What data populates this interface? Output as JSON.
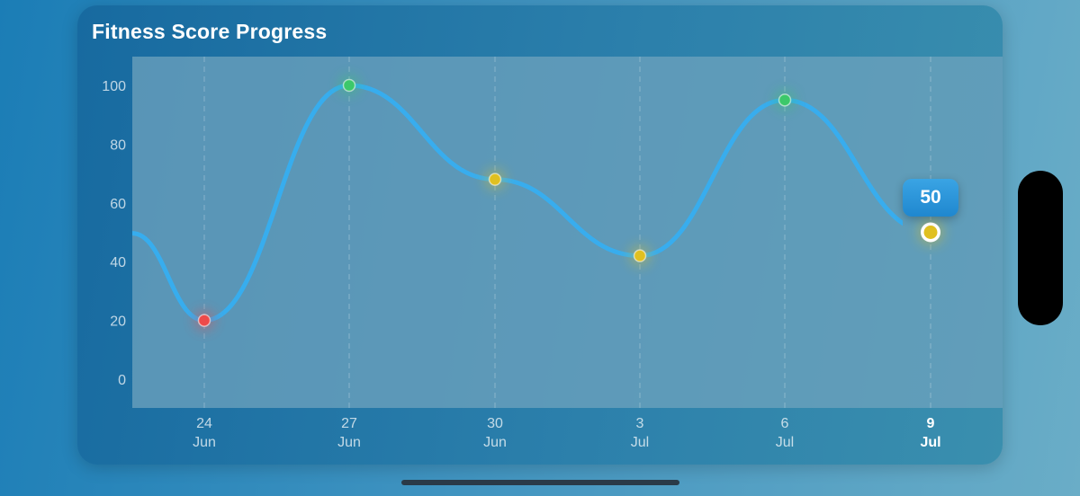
{
  "card": {
    "title": "Fitness Score Progress"
  },
  "tooltip": {
    "value": "50"
  },
  "colors": {
    "line": "#36aef0",
    "good": "#3cc86a",
    "medium": "#e0c020",
    "poor": "#ee4a4a",
    "plot_bg": "#6fa3bd"
  },
  "chart_data": {
    "type": "line",
    "title": "Fitness Score Progress",
    "xlabel": "",
    "ylabel": "",
    "ylim": [
      0,
      100
    ],
    "yticks": [
      "0",
      "20",
      "40",
      "60",
      "80",
      "100"
    ],
    "x": [
      {
        "day": "24",
        "month": "Jun"
      },
      {
        "day": "27",
        "month": "Jun"
      },
      {
        "day": "30",
        "month": "Jun"
      },
      {
        "day": "3",
        "month": "Jul"
      },
      {
        "day": "6",
        "month": "Jul"
      },
      {
        "day": "9",
        "month": "Jul"
      }
    ],
    "selected_index": 5,
    "series": [
      {
        "values": [
          20,
          100,
          68,
          42,
          95,
          50
        ],
        "point_status": [
          "poor",
          "good",
          "medium",
          "medium",
          "good",
          "medium"
        ]
      }
    ],
    "grid": true
  }
}
